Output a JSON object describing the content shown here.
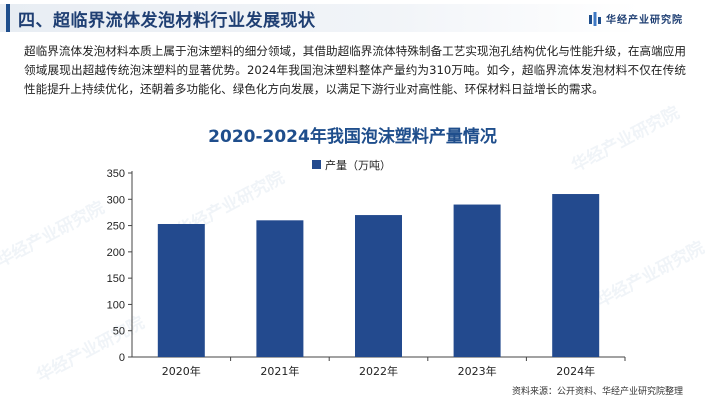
{
  "header": {
    "title": "四、超临界流体发泡材料行业发展现状"
  },
  "brand": {
    "name": "华经产业研究院"
  },
  "paragraph": "超临界流体发泡材料本质上属于泡沫塑料的细分领域，其借助超临界流体特殊制备工艺实现泡孔结构优化与性能升级，在高端应用领域展现出超越传统泡沫塑料的显著优势。2024年我国泡沫塑料整体产量约为310万吨。如今，超临界流体发泡材料不仅在传统性能提升上持续优化，还朝着多功能化、绿色化方向发展，以满足下游行业对高性能、环保材料日益增长的需求。",
  "watermark": "华经产业研究院",
  "colors": {
    "bar": "#234a8e",
    "title": "#1f4e8c"
  },
  "chart_data": {
    "type": "bar",
    "title": "2020-2024年我国泡沫塑料产量情况",
    "categories": [
      "2020年",
      "2021年",
      "2022年",
      "2023年",
      "2024年"
    ],
    "series": [
      {
        "name": "产量（万吨）",
        "values": [
          253,
          260,
          270,
          290,
          310
        ]
      }
    ],
    "ylim": [
      0,
      350
    ],
    "yticks": [
      0,
      50,
      100,
      150,
      200,
      250,
      300,
      350
    ],
    "legend": "top-left",
    "grid": false
  },
  "source": "资料来源：公开资料、华经产业研究院整理"
}
